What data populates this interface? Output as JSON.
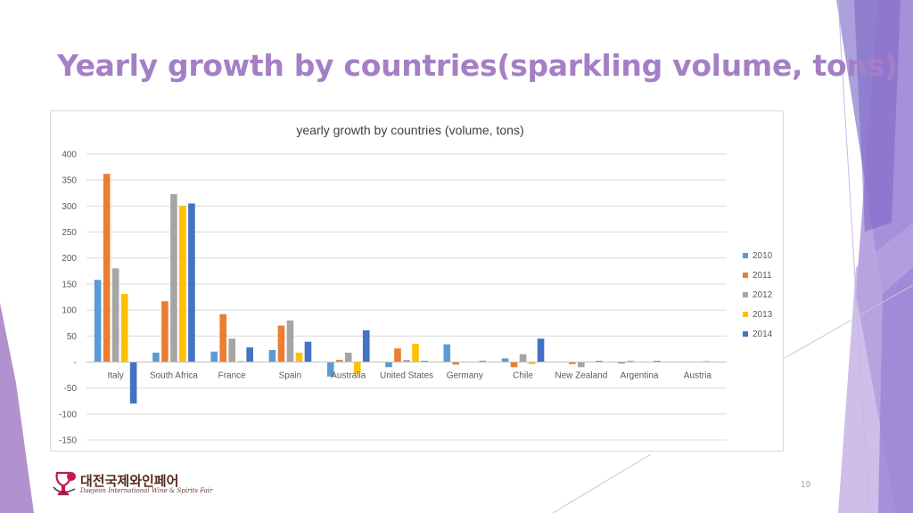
{
  "slide": {
    "title": "Yearly growth by countries(sparkling volume, tons)",
    "page_number": "19"
  },
  "logo": {
    "korean_text": "대전국제와인페어",
    "english_text": "Daejeon International Wine & Spirits Fair"
  },
  "theme_colors": {
    "title": "#a57fc6",
    "accent_purple": "#7b5fc7",
    "accent_lavender": "#b08ed6"
  },
  "chart_data": {
    "type": "bar",
    "title": "yearly growth by countries (volume, tons)",
    "xlabel": "",
    "ylabel": "",
    "categories": [
      "Italy",
      "South Africa",
      "France",
      "Spain",
      "Australia",
      "United States",
      "Germany",
      "Chile",
      "New Zealand",
      "Argentina",
      "Austria"
    ],
    "series": [
      {
        "name": "2010",
        "color": "#5b9bd5",
        "values": [
          158,
          18,
          20,
          23,
          -28,
          -10,
          34,
          7,
          0,
          -3,
          0
        ]
      },
      {
        "name": "2011",
        "color": "#ed7d31",
        "values": [
          362,
          117,
          92,
          70,
          4,
          26,
          -5,
          -10,
          -4,
          2,
          0
        ]
      },
      {
        "name": "2012",
        "color": "#a5a5a5",
        "values": [
          180,
          323,
          45,
          80,
          18,
          4,
          1,
          15,
          -10,
          0,
          0
        ]
      },
      {
        "name": "2013",
        "color": "#ffc000",
        "values": [
          131,
          300,
          2,
          18,
          -22,
          35,
          0,
          -4,
          0,
          0,
          2
        ]
      },
      {
        "name": "2014",
        "color": "#4472c4",
        "values": [
          -80,
          305,
          28,
          39,
          61,
          2,
          2,
          45,
          2,
          2,
          0
        ]
      }
    ],
    "ylim": [
      -150,
      400
    ],
    "yticks": [
      400,
      350,
      300,
      250,
      200,
      150,
      100,
      50,
      0,
      -50,
      -100,
      -150
    ],
    "ytick_labels": [
      "400",
      "350",
      "300",
      "250",
      "200",
      "150",
      "100",
      "50",
      "-",
      "-50",
      "-100",
      "-150"
    ],
    "grid": true,
    "legend_position": "right"
  }
}
